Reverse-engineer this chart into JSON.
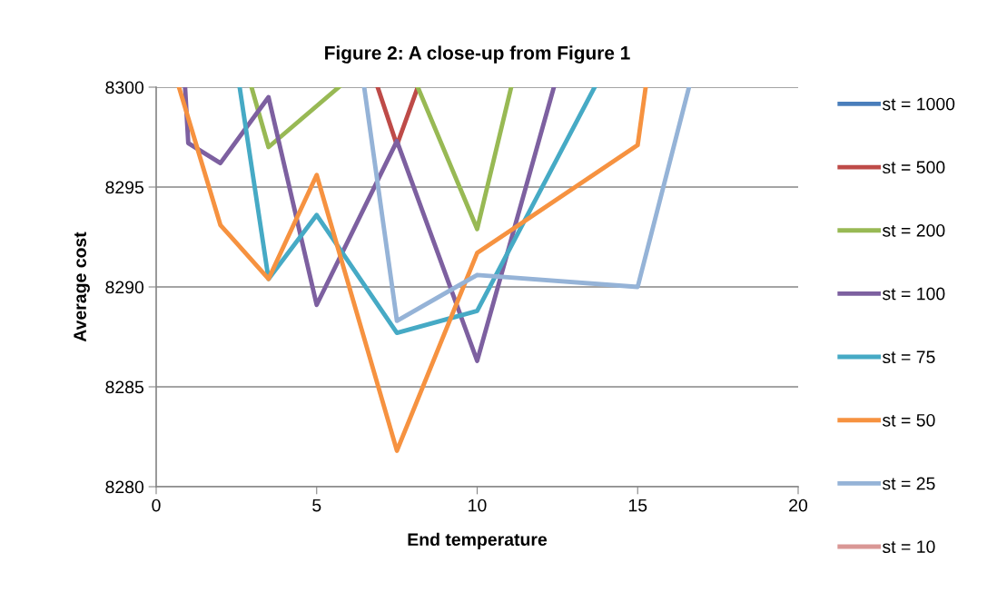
{
  "chart_data": {
    "type": "line",
    "title": "Figure 2: A close-up from Figure 1",
    "xlabel": "End temperature",
    "ylabel": "Average cost",
    "xlim": [
      0,
      20
    ],
    "xticks": [
      0,
      5,
      10,
      15,
      20
    ],
    "ylim": [
      8280,
      8300
    ],
    "yticks": [
      8280,
      8285,
      8290,
      8295,
      8300
    ],
    "grid": "y",
    "legend": "right",
    "marker": "none",
    "line_style": "solid",
    "series": [
      {
        "name": "st = 1000",
        "color": "#4a7ebb"
      },
      {
        "name": "st = 500",
        "color": "#be4b48",
        "x": [
          6.9,
          7.5,
          8.15
        ],
        "values": [
          8300,
          8297.1,
          8300
        ]
      },
      {
        "name": "st = 200",
        "color": "#98b954",
        "x": [
          2.97,
          3.5,
          5.69,
          null,
          8.15,
          10,
          11.06
        ],
        "values": [
          8300,
          8297.0,
          8300,
          null,
          8300,
          8292.9,
          8300
        ]
      },
      {
        "name": "st = 100",
        "color": "#7d60a0",
        "x": [
          0.9,
          1,
          2,
          3.5,
          5,
          7.5,
          10,
          12.39
        ],
        "values": [
          8300,
          8297.2,
          8296.2,
          8299.5,
          8289.1,
          8297.3,
          8286.3,
          8300
        ]
      },
      {
        "name": "st = 75",
        "color": "#46aac5",
        "x": [
          2.6,
          3.5,
          5,
          7.5,
          10,
          13.66
        ],
        "values": [
          8300,
          8290.4,
          8293.6,
          8287.7,
          8288.8,
          8300
        ]
      },
      {
        "name": "st = 50",
        "color": "#f69240",
        "x": [
          0.71,
          2,
          3.5,
          5,
          7.5,
          10,
          15,
          15.25
        ],
        "values": [
          8300,
          8293.1,
          8290.4,
          8295.6,
          8281.8,
          8291.7,
          8297.1,
          8300
        ]
      },
      {
        "name": "st = 25",
        "color": "#95b3d7",
        "x": [
          6.48,
          7.5,
          10,
          15,
          16.6
        ],
        "values": [
          8300,
          8288.3,
          8290.6,
          8290.0,
          8300
        ]
      },
      {
        "name": "st = 10",
        "color": "#d99795"
      }
    ]
  }
}
